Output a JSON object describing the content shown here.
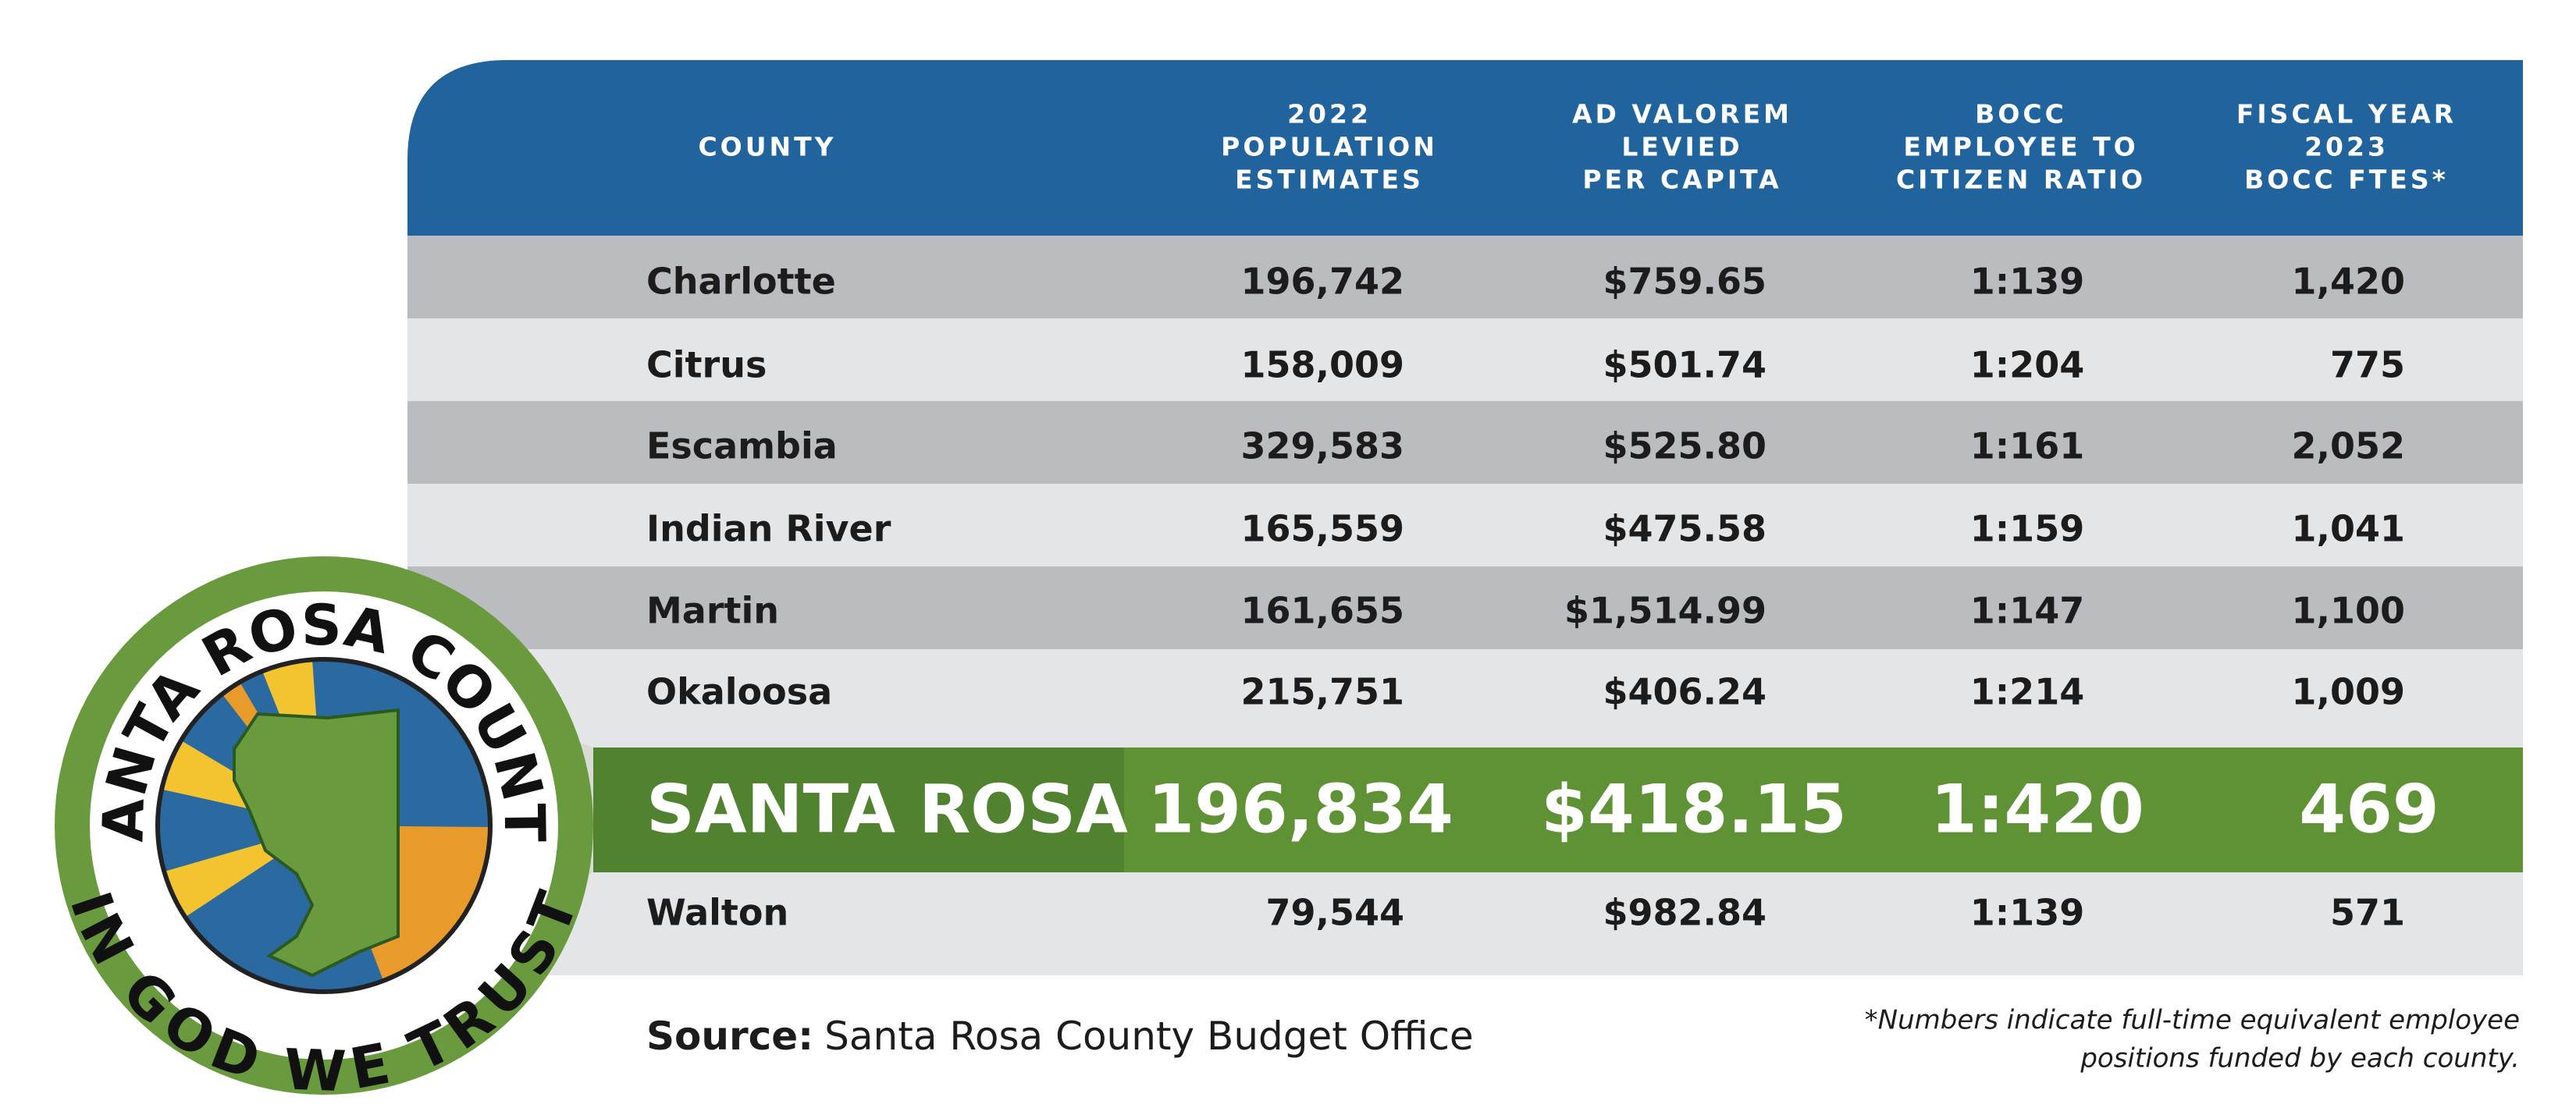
{
  "header": {
    "columns": [
      [
        "COUNTY"
      ],
      [
        "2022",
        "POPULATION",
        "ESTIMATES"
      ],
      [
        "AD VALOREM",
        "LEVIED",
        "PER CAPITA"
      ],
      [
        "BOCC",
        "EMPLOYEE TO",
        "CITIZEN RATIO"
      ],
      [
        "FISCAL YEAR",
        "2023",
        "BOCC FTES*"
      ]
    ]
  },
  "table": {
    "rows": [
      [
        "Charlotte",
        "196,742",
        "$759.65",
        "1:139",
        "1,420"
      ],
      [
        "Citrus",
        "158,009",
        "$501.74",
        "1:204",
        "775"
      ],
      [
        "Escambia",
        "329,583",
        "$525.80",
        "1:161",
        "2,052"
      ],
      [
        "Indian River",
        "165,559",
        "$475.58",
        "1:159",
        "1,041"
      ],
      [
        "Martin",
        "161,655",
        "$1,514.99",
        "1:147",
        "1,100"
      ],
      [
        "Okaloosa",
        "215,751",
        "$406.24",
        "1:214",
        "1,009"
      ],
      [
        "SANTA ROSA",
        "196,834",
        "$418.15",
        "1:420",
        "469"
      ],
      [
        "Walton",
        "79,544",
        "$982.84",
        "1:139",
        "571"
      ]
    ],
    "highlight_row": 6
  },
  "source": {
    "label": "Source:",
    "text": "Santa Rosa County Budget Office"
  },
  "footnote": [
    "*Numbers indicate full-time equivalent employee",
    "positions funded by each county."
  ],
  "logo": {
    "top_text": "SANTA ROSA COUNTY",
    "bottom_text": "IN GOD WE TRUST"
  }
}
